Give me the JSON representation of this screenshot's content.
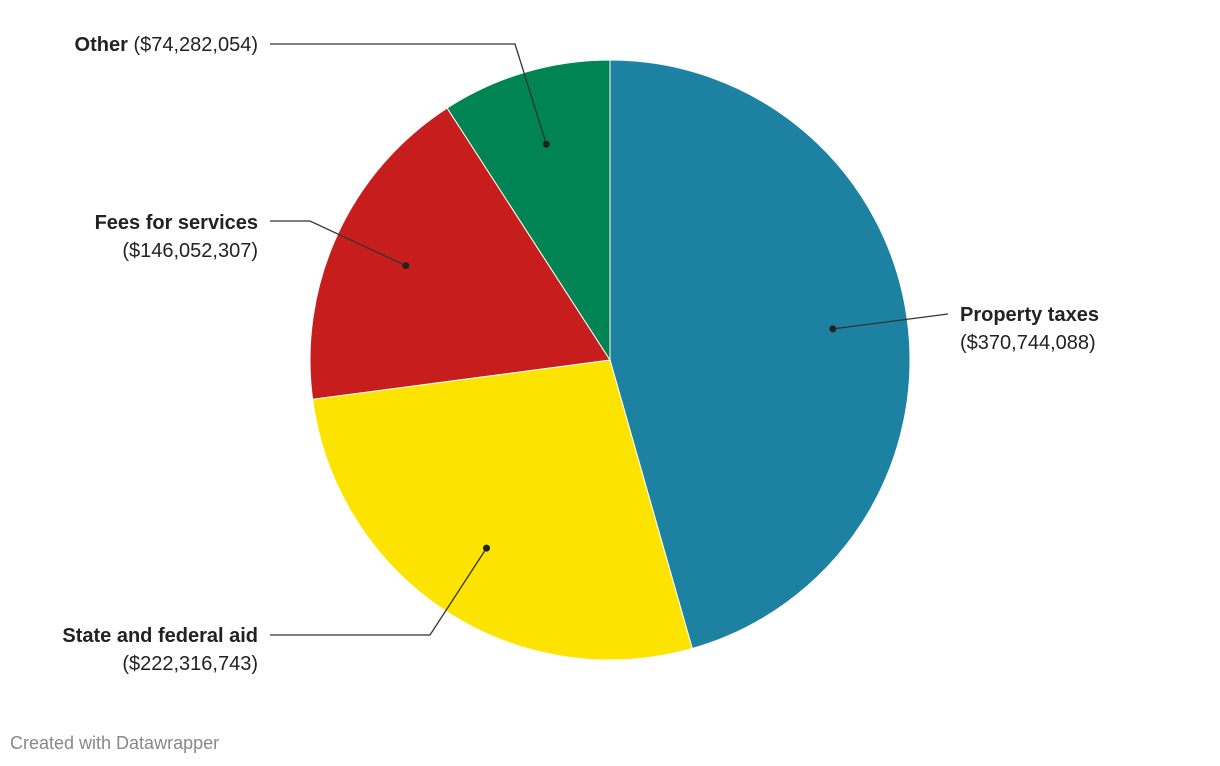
{
  "chart_data": {
    "type": "pie",
    "categories": [
      "Property taxes",
      "State and federal aid",
      "Fees for services",
      "Other"
    ],
    "values": [
      370744088,
      222316743,
      146052307,
      74282054
    ],
    "value_labels": [
      "($370,744,088)",
      "($222,316,743)",
      "($146,052,307)",
      "($74,282,054)"
    ],
    "colors": [
      "#1d81a2",
      "#fde300",
      "#c71e1d",
      "#008454"
    ],
    "credit": "Created with Datawrapper"
  }
}
